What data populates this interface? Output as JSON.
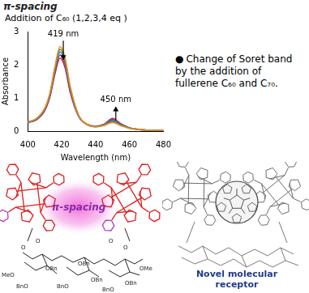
{
  "header": {
    "title": "π-spacing"
  },
  "chart_caption": "Addition of C₆₀ (1,2,3,4 eq )",
  "chart_data": {
    "type": "line",
    "x_label": "Wavelength (nm)",
    "y_label": "Absorbance",
    "x": [
      400,
      405,
      410,
      413,
      416,
      419,
      422,
      425,
      430,
      435,
      440,
      445,
      450,
      455,
      460,
      465,
      470,
      475,
      480
    ],
    "series": [
      {
        "color": "#f08a24",
        "values": [
          0.28,
          0.38,
          0.7,
          1.15,
          1.95,
          2.55,
          2.2,
          1.35,
          0.48,
          0.2,
          0.13,
          0.17,
          0.26,
          0.16,
          0.08,
          0.05,
          0.03,
          0.02,
          0.02
        ]
      },
      {
        "color": "#2e9e3e",
        "values": [
          0.27,
          0.37,
          0.68,
          1.12,
          1.9,
          2.47,
          2.13,
          1.31,
          0.47,
          0.2,
          0.13,
          0.18,
          0.29,
          0.18,
          0.09,
          0.05,
          0.03,
          0.02,
          0.02
        ]
      },
      {
        "color": "#3a6fcf",
        "values": [
          0.27,
          0.36,
          0.66,
          1.09,
          1.85,
          2.39,
          2.06,
          1.27,
          0.46,
          0.2,
          0.14,
          0.19,
          0.32,
          0.19,
          0.09,
          0.05,
          0.03,
          0.02,
          0.02
        ]
      },
      {
        "color": "#8e3fa0",
        "values": [
          0.26,
          0.35,
          0.64,
          1.06,
          1.79,
          2.3,
          1.98,
          1.22,
          0.45,
          0.2,
          0.14,
          0.2,
          0.35,
          0.21,
          0.1,
          0.05,
          0.03,
          0.02,
          0.02
        ]
      },
      {
        "color": "#d62020",
        "values": [
          0.26,
          0.34,
          0.62,
          1.03,
          1.73,
          2.2,
          1.9,
          1.17,
          0.44,
          0.2,
          0.15,
          0.21,
          0.38,
          0.22,
          0.1,
          0.06,
          0.03,
          0.02,
          0.02
        ]
      }
    ],
    "xlim": [
      400,
      480
    ],
    "xticks": [
      400,
      420,
      440,
      460,
      480
    ],
    "ylim": [
      0,
      3
    ],
    "yticks": [
      0,
      1,
      2,
      3
    ],
    "grid": false,
    "annotations": [
      {
        "text": "419 nm",
        "x": 419,
        "y": 2.8
      },
      {
        "text": "450 nm",
        "x": 450,
        "y": 0.82
      }
    ]
  },
  "bullet": {
    "symbol": "●",
    "text": "Change of Soret band by the addition of fullerene C₆₀ and C₇₀."
  },
  "diagram_left": {
    "label": "π-spacing",
    "atoms": [
      "O",
      "O",
      "O",
      "O",
      "MeO",
      "BnO",
      "OBn",
      "BnO",
      "OBn",
      "OBn",
      "BnO",
      "OBn",
      "OMe"
    ]
  },
  "diagram_right": {
    "label": "Novel molecular receptor"
  }
}
